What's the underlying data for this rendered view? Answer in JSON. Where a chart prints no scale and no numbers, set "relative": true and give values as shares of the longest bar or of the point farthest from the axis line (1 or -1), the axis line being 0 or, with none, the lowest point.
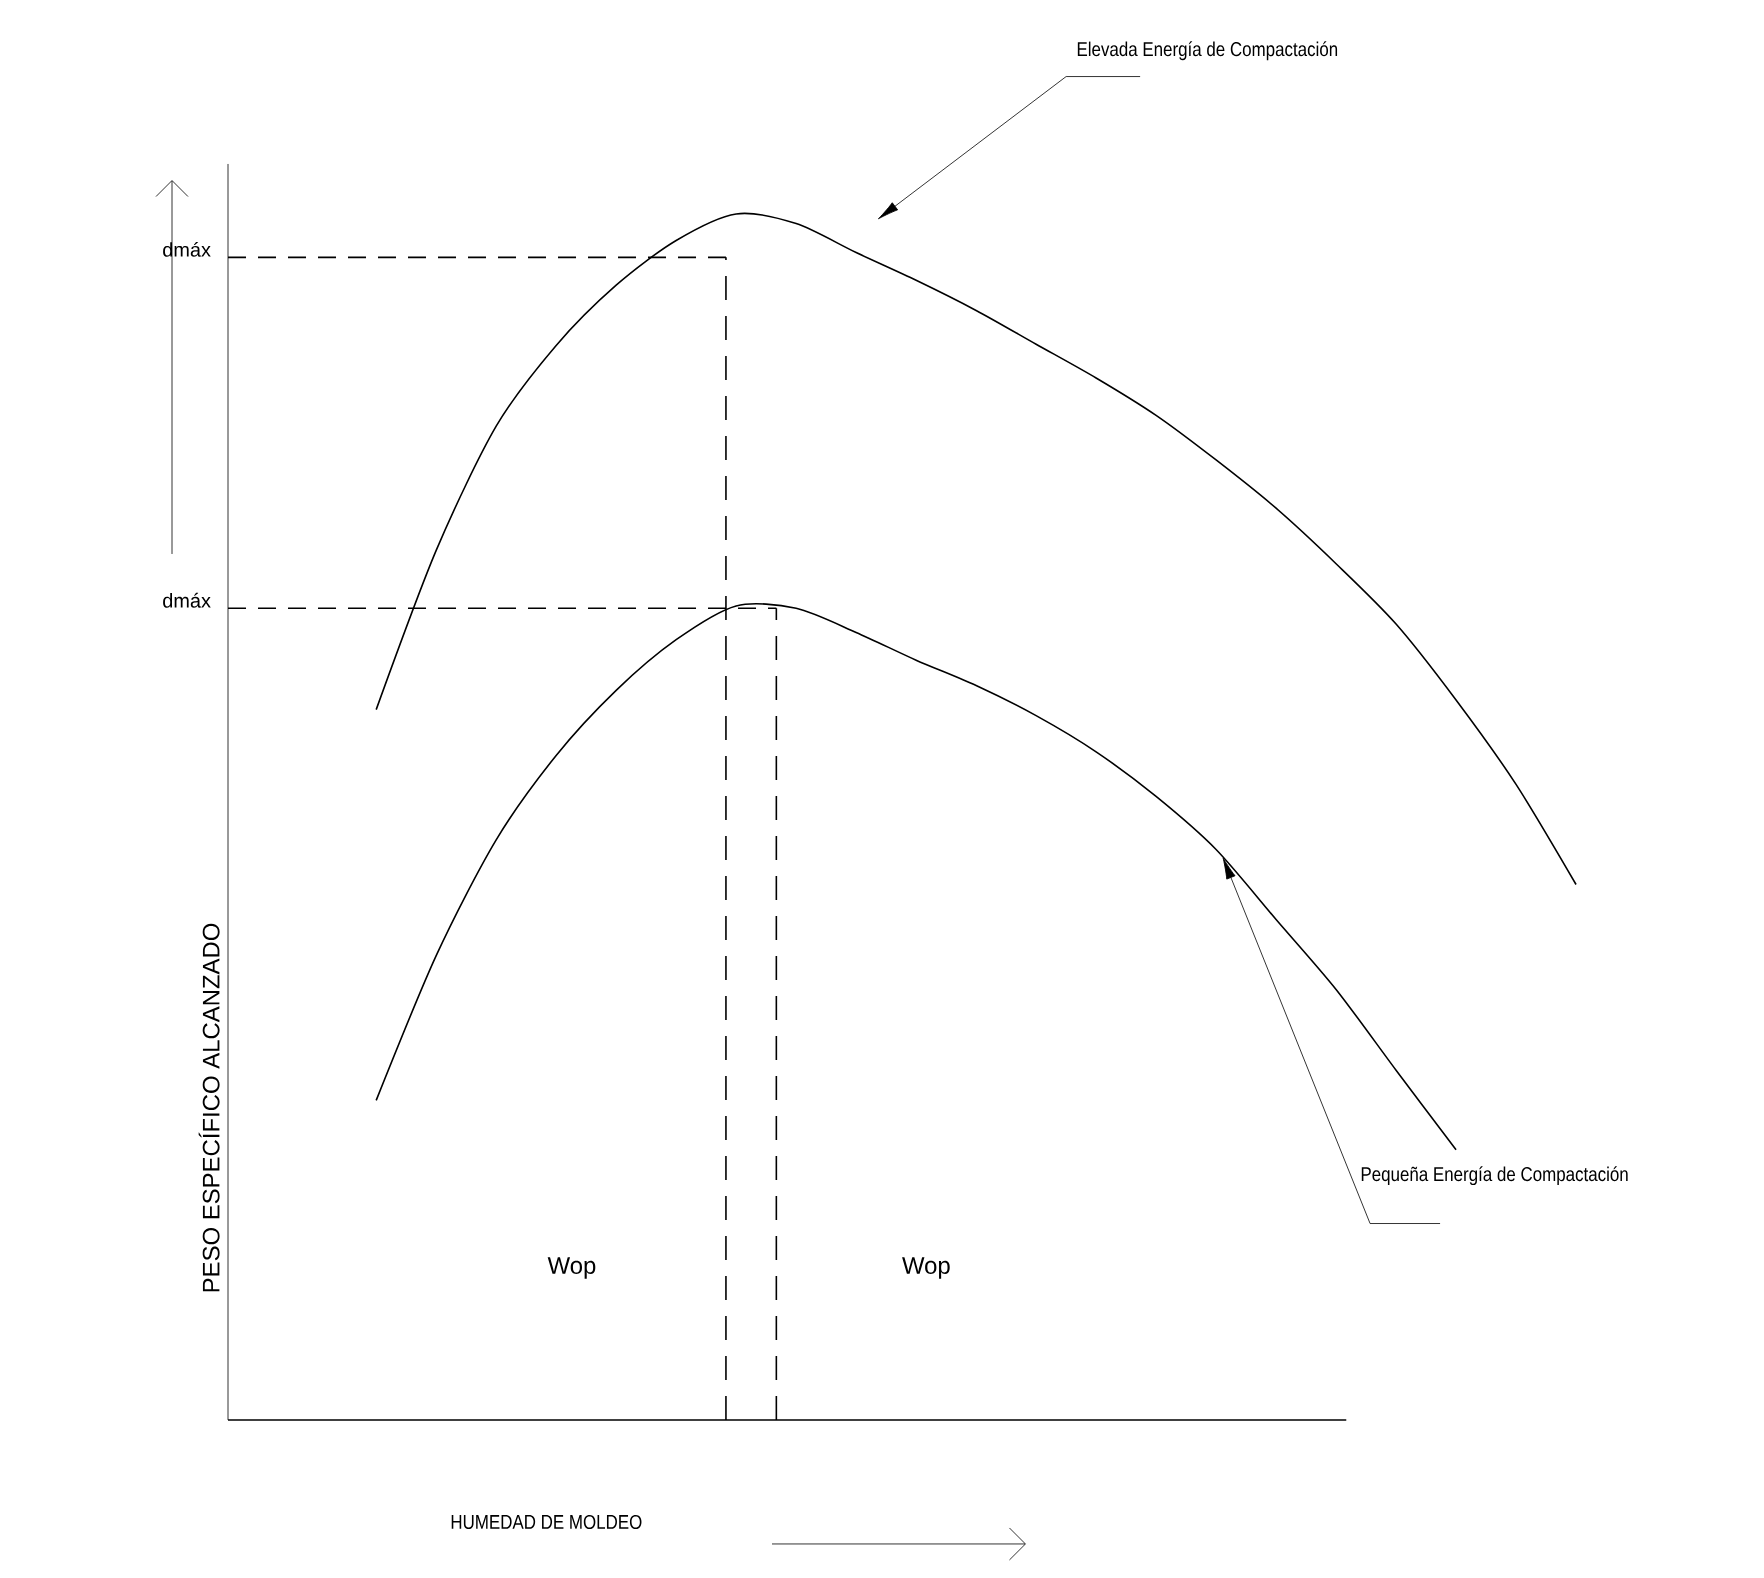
{
  "chart_data": {
    "type": "line",
    "relative": true,
    "xlabel": "HUMEDAD DE MOLDEO",
    "categories": [
      null,
      null,
      null,
      null,
      null,
      null,
      null,
      null,
      null,
      null,
      null,
      null,
      null,
      null,
      null,
      null,
      null,
      null,
      null,
      null,
      null
    ],
    "series": [
      {
        "color": "#000000",
        "values": [
          0.589,
          0.721,
          0.824,
          0.891,
          0.941,
          0.978,
          1.0,
          0.992,
          0.968,
          0.945,
          0.92,
          0.892,
          0.864,
          0.833,
          0.796,
          0.756,
          0.71,
          0.66,
          0.597,
          0.527,
          0.444
        ]
      },
      {
        "color": "#000000",
        "values": [
          0.265,
          0.385,
          0.481,
          0.551,
          0.605,
          0.647,
          0.675,
          0.673,
          0.653,
          0.63,
          0.609,
          0.584,
          0.554,
          0.517,
          0.473,
          0.415,
          0.357,
          0.29,
          0.224,
          null,
          null
        ]
      }
    ],
    "ref_lines": [
      {
        "axis": "y",
        "value": 0.964,
        "label": "dmáx",
        "line_style": "dashed"
      },
      {
        "axis": "y",
        "value": 0.673,
        "label": "dmáx",
        "line_style": "dashed"
      }
    ],
    "annotations": [
      "Elevada Energía de Compactación",
      "Pequeña Energía de Compactación",
      "Wop",
      "Wop",
      "PESO ESPECÍFICO ALCANZADO"
    ],
    "marker": "none",
    "line_style": "solid"
  }
}
